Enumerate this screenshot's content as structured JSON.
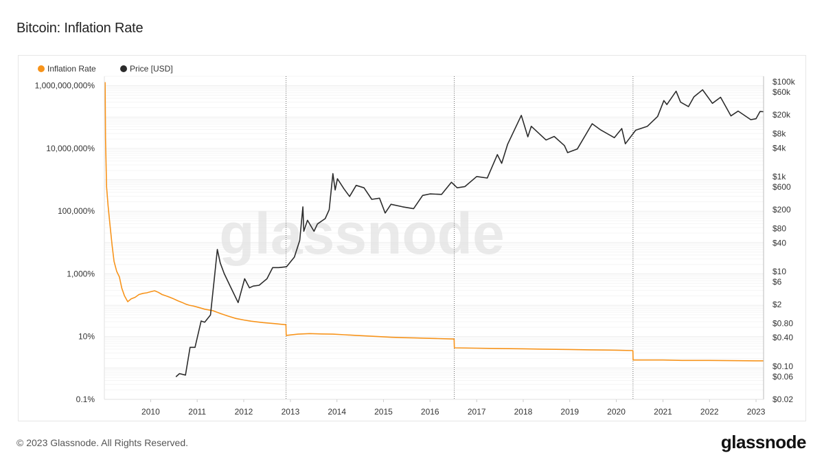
{
  "page": {
    "title": "Bitcoin: Inflation Rate",
    "footer": "© 2023 Glassnode. All Rights Reserved.",
    "brand": "glassnode",
    "watermark": "glassnode"
  },
  "chart_data": {
    "type": "line",
    "legend_placement": "top-left",
    "grid": true,
    "halving_markers": [
      "2012-11-28",
      "2016-07-09",
      "2020-05-11"
    ],
    "x_axis": {
      "type": "time",
      "range": [
        "2009-01-03",
        "2023-03-01"
      ],
      "ticks": [
        "2010",
        "2011",
        "2012",
        "2013",
        "2014",
        "2015",
        "2016",
        "2017",
        "2018",
        "2019",
        "2020",
        "2021",
        "2022",
        "2023"
      ]
    },
    "y_left": {
      "scale": "log",
      "range_percent": [
        0.1,
        2000000000
      ],
      "ticks": [
        {
          "v": 1000000000,
          "label": "1,000,000,000%"
        },
        {
          "v": 10000000,
          "label": "10,000,000%"
        },
        {
          "v": 100000,
          "label": "100,000%"
        },
        {
          "v": 1000,
          "label": "1,000%"
        },
        {
          "v": 10,
          "label": "10%"
        },
        {
          "v": 0.1,
          "label": "0.1%"
        }
      ]
    },
    "y_right": {
      "scale": "log",
      "range_usd": [
        0.02,
        130000
      ],
      "ticks": [
        {
          "v": 100000,
          "label": "$100k"
        },
        {
          "v": 60000,
          "label": "$60k"
        },
        {
          "v": 20000,
          "label": "$20k"
        },
        {
          "v": 8000,
          "label": "$8k"
        },
        {
          "v": 4000,
          "label": "$4k"
        },
        {
          "v": 1000,
          "label": "$1k"
        },
        {
          "v": 600,
          "label": "$600"
        },
        {
          "v": 200,
          "label": "$200"
        },
        {
          "v": 80,
          "label": "$80"
        },
        {
          "v": 40,
          "label": "$40"
        },
        {
          "v": 10,
          "label": "$10"
        },
        {
          "v": 6,
          "label": "$6"
        },
        {
          "v": 2,
          "label": "$2"
        },
        {
          "v": 0.8,
          "label": "$0.80"
        },
        {
          "v": 0.4,
          "label": "$0.40"
        },
        {
          "v": 0.1,
          "label": "$0.10"
        },
        {
          "v": 0.06,
          "label": "$0.06"
        },
        {
          "v": 0.02,
          "label": "$0.02"
        }
      ]
    },
    "series": [
      {
        "name": "Inflation Rate",
        "color": "#f7931a",
        "axis": "left",
        "unit": "%",
        "points": [
          [
            "2009-01-09",
            1300000000
          ],
          [
            "2009-01-12",
            20000000
          ],
          [
            "2009-01-20",
            600000
          ],
          [
            "2009-02-01",
            150000
          ],
          [
            "2009-02-15",
            40000
          ],
          [
            "2009-03-05",
            8000
          ],
          [
            "2009-03-20",
            2500
          ],
          [
            "2009-04-10",
            1200
          ],
          [
            "2009-05-01",
            800
          ],
          [
            "2009-05-20",
            350
          ],
          [
            "2009-06-10",
            200
          ],
          [
            "2009-07-05",
            130
          ],
          [
            "2009-08-01",
            160
          ],
          [
            "2009-09-01",
            180
          ],
          [
            "2009-10-01",
            220
          ],
          [
            "2009-11-01",
            240
          ],
          [
            "2009-12-01",
            250
          ],
          [
            "2010-01-01",
            270
          ],
          [
            "2010-02-01",
            290
          ],
          [
            "2010-03-01",
            260
          ],
          [
            "2010-04-01",
            220
          ],
          [
            "2010-05-01",
            200
          ],
          [
            "2010-06-01",
            180
          ],
          [
            "2010-07-01",
            160
          ],
          [
            "2010-08-01",
            140
          ],
          [
            "2010-09-01",
            125
          ],
          [
            "2010-10-01",
            110
          ],
          [
            "2010-11-01",
            100
          ],
          [
            "2010-12-01",
            95
          ],
          [
            "2011-01-01",
            88
          ],
          [
            "2011-03-01",
            75
          ],
          [
            "2011-05-01",
            68
          ],
          [
            "2011-07-01",
            55
          ],
          [
            "2011-09-01",
            45
          ],
          [
            "2011-11-01",
            38
          ],
          [
            "2012-01-01",
            34
          ],
          [
            "2012-03-01",
            31
          ],
          [
            "2012-06-01",
            28
          ],
          [
            "2012-09-01",
            26
          ],
          [
            "2012-11-27",
            24
          ],
          [
            "2012-11-29",
            11
          ],
          [
            "2013-03-01",
            12
          ],
          [
            "2013-06-01",
            12.5
          ],
          [
            "2013-09-01",
            12.2
          ],
          [
            "2013-12-01",
            12
          ],
          [
            "2014-03-01",
            11.5
          ],
          [
            "2014-06-01",
            11
          ],
          [
            "2014-09-01",
            10.5
          ],
          [
            "2014-12-01",
            10
          ],
          [
            "2015-03-01",
            9.6
          ],
          [
            "2015-06-01",
            9.3
          ],
          [
            "2015-09-01",
            9.1
          ],
          [
            "2015-12-01",
            8.9
          ],
          [
            "2016-03-01",
            8.7
          ],
          [
            "2016-07-08",
            8.4
          ],
          [
            "2016-07-10",
            4.4
          ],
          [
            "2017-01-01",
            4.3
          ],
          [
            "2017-06-01",
            4.2
          ],
          [
            "2018-01-01",
            4.1
          ],
          [
            "2018-06-01",
            4.0
          ],
          [
            "2019-01-01",
            3.9
          ],
          [
            "2019-06-01",
            3.8
          ],
          [
            "2020-01-01",
            3.7
          ],
          [
            "2020-05-10",
            3.6
          ],
          [
            "2020-05-12",
            1.8
          ],
          [
            "2021-01-01",
            1.8
          ],
          [
            "2021-06-01",
            1.75
          ],
          [
            "2022-01-01",
            1.75
          ],
          [
            "2022-06-01",
            1.72
          ],
          [
            "2023-01-01",
            1.7
          ],
          [
            "2023-03-01",
            1.7
          ]
        ]
      },
      {
        "name": "Price [USD]",
        "color": "#2b2b2b",
        "axis": "right",
        "unit": "USD",
        "points": [
          [
            "2010-07-18",
            0.06
          ],
          [
            "2010-08-15",
            0.07
          ],
          [
            "2010-10-01",
            0.065
          ],
          [
            "2010-11-06",
            0.25
          ],
          [
            "2010-12-15",
            0.25
          ],
          [
            "2011-02-01",
            0.9
          ],
          [
            "2011-03-01",
            0.85
          ],
          [
            "2011-04-15",
            1.2
          ],
          [
            "2011-05-15",
            7
          ],
          [
            "2011-06-08",
            29
          ],
          [
            "2011-07-01",
            15
          ],
          [
            "2011-08-01",
            9
          ],
          [
            "2011-09-15",
            5
          ],
          [
            "2011-11-18",
            2.2
          ],
          [
            "2012-01-08",
            7
          ],
          [
            "2012-02-15",
            4.5
          ],
          [
            "2012-03-15",
            4.9
          ],
          [
            "2012-05-01",
            5.1
          ],
          [
            "2012-07-01",
            7
          ],
          [
            "2012-08-15",
            12
          ],
          [
            "2012-10-01",
            12
          ],
          [
            "2012-12-01",
            12.5
          ],
          [
            "2013-02-01",
            20
          ],
          [
            "2013-03-15",
            45
          ],
          [
            "2013-04-09",
            230
          ],
          [
            "2013-04-16",
            70
          ],
          [
            "2013-05-15",
            120
          ],
          [
            "2013-07-05",
            70
          ],
          [
            "2013-08-01",
            100
          ],
          [
            "2013-10-01",
            130
          ],
          [
            "2013-11-01",
            200
          ],
          [
            "2013-11-30",
            1150
          ],
          [
            "2013-12-18",
            520
          ],
          [
            "2014-01-05",
            900
          ],
          [
            "2014-02-25",
            550
          ],
          [
            "2014-04-10",
            380
          ],
          [
            "2014-06-01",
            650
          ],
          [
            "2014-08-01",
            580
          ],
          [
            "2014-10-01",
            330
          ],
          [
            "2014-12-01",
            350
          ],
          [
            "2015-01-14",
            170
          ],
          [
            "2015-03-01",
            260
          ],
          [
            "2015-06-01",
            230
          ],
          [
            "2015-08-25",
            210
          ],
          [
            "2015-11-04",
            400
          ],
          [
            "2016-01-01",
            430
          ],
          [
            "2016-04-01",
            420
          ],
          [
            "2016-06-17",
            760
          ],
          [
            "2016-08-01",
            580
          ],
          [
            "2016-10-01",
            615
          ],
          [
            "2017-01-01",
            1000
          ],
          [
            "2017-03-25",
            930
          ],
          [
            "2017-06-12",
            2900
          ],
          [
            "2017-07-16",
            1900
          ],
          [
            "2017-09-01",
            4800
          ],
          [
            "2017-12-17",
            19500
          ],
          [
            "2018-02-06",
            6900
          ],
          [
            "2018-03-05",
            11500
          ],
          [
            "2018-06-29",
            5900
          ],
          [
            "2018-09-01",
            7000
          ],
          [
            "2018-11-20",
            4500
          ],
          [
            "2018-12-15",
            3200
          ],
          [
            "2019-03-01",
            3800
          ],
          [
            "2019-06-26",
            13000
          ],
          [
            "2019-09-01",
            9600
          ],
          [
            "2019-12-17",
            6600
          ],
          [
            "2020-02-13",
            10300
          ],
          [
            "2020-03-12",
            4900
          ],
          [
            "2020-06-01",
            9500
          ],
          [
            "2020-09-01",
            11500
          ],
          [
            "2020-11-20",
            18500
          ],
          [
            "2021-01-08",
            40000
          ],
          [
            "2021-02-01",
            33000
          ],
          [
            "2021-04-14",
            63000
          ],
          [
            "2021-05-19",
            37000
          ],
          [
            "2021-07-20",
            29800
          ],
          [
            "2021-09-01",
            48000
          ],
          [
            "2021-11-08",
            67500
          ],
          [
            "2022-01-24",
            35000
          ],
          [
            "2022-03-29",
            47000
          ],
          [
            "2022-06-18",
            19000
          ],
          [
            "2022-08-14",
            24000
          ],
          [
            "2022-11-21",
            15800
          ],
          [
            "2023-01-01",
            16600
          ],
          [
            "2023-02-01",
            23500
          ],
          [
            "2023-03-01",
            23300
          ]
        ]
      }
    ]
  }
}
